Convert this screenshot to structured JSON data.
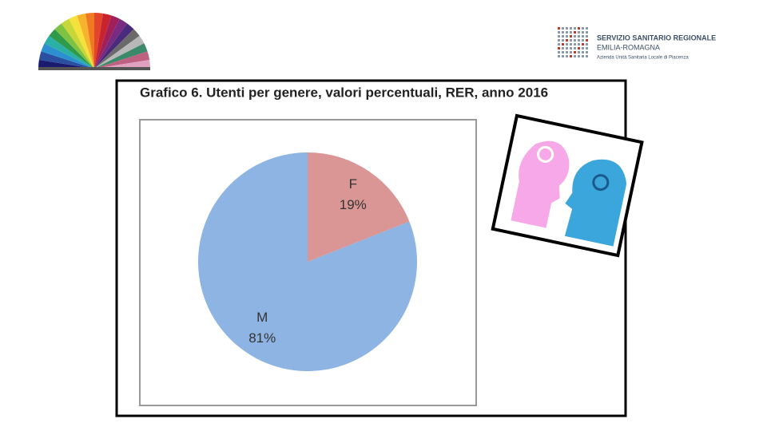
{
  "logo": {
    "line1": "SERVIZIO SANITARIO REGIONALE",
    "line2": "EMILIA-ROMAGNA",
    "line3": "Azienda Unità Sanitaria Locale di Piacenza"
  },
  "chart_data": {
    "type": "pie",
    "title": "Grafico 6. Utenti per genere, valori percentuali, RER, anno 2016",
    "categories": [
      "F",
      "M"
    ],
    "values": [
      19,
      81
    ],
    "value_labels": [
      "19%",
      "81%"
    ],
    "colors": [
      "#d99694",
      "#8eb4e3"
    ]
  }
}
